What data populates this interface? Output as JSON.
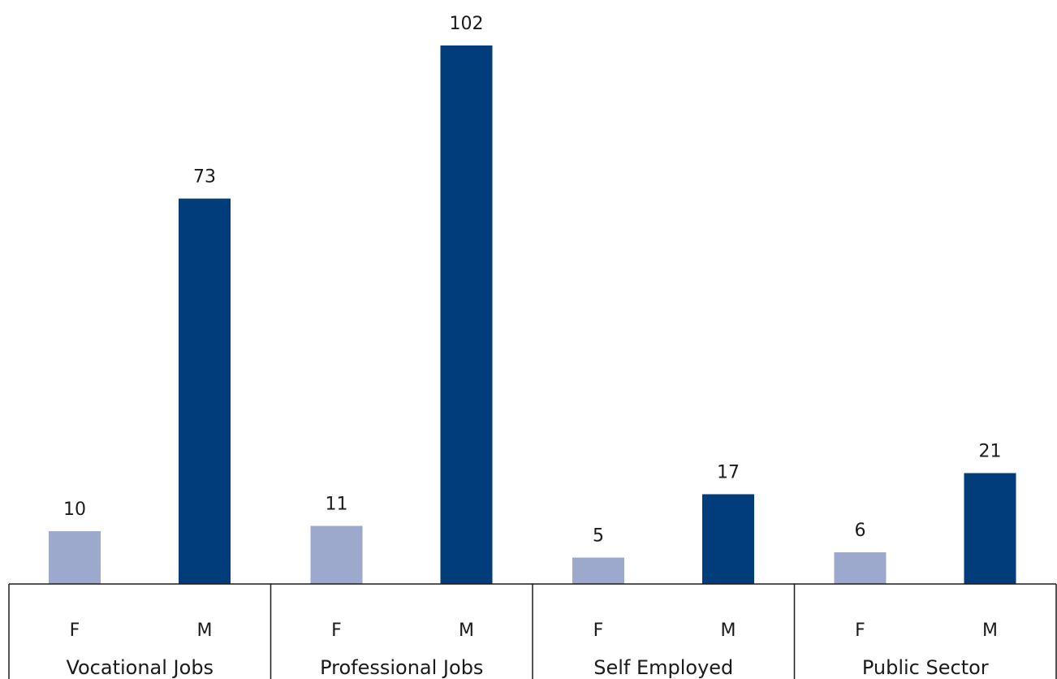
{
  "chart_data": {
    "type": "bar",
    "categories": [
      "Vocational Jobs",
      "Professional Jobs",
      "Self Employed",
      "Public Sector"
    ],
    "sub_categories": [
      "F",
      "M"
    ],
    "series": [
      {
        "values": [
          10,
          11,
          5,
          6
        ]
      },
      {
        "values": [
          73,
          102,
          17,
          21
        ]
      }
    ],
    "colors": {
      "F": "#9ca9cc",
      "M": "#003d7a"
    },
    "ylim": [
      0,
      102
    ],
    "data_labels": true,
    "grid": false,
    "legend": "none",
    "title": "",
    "xlabel": "",
    "ylabel": ""
  }
}
